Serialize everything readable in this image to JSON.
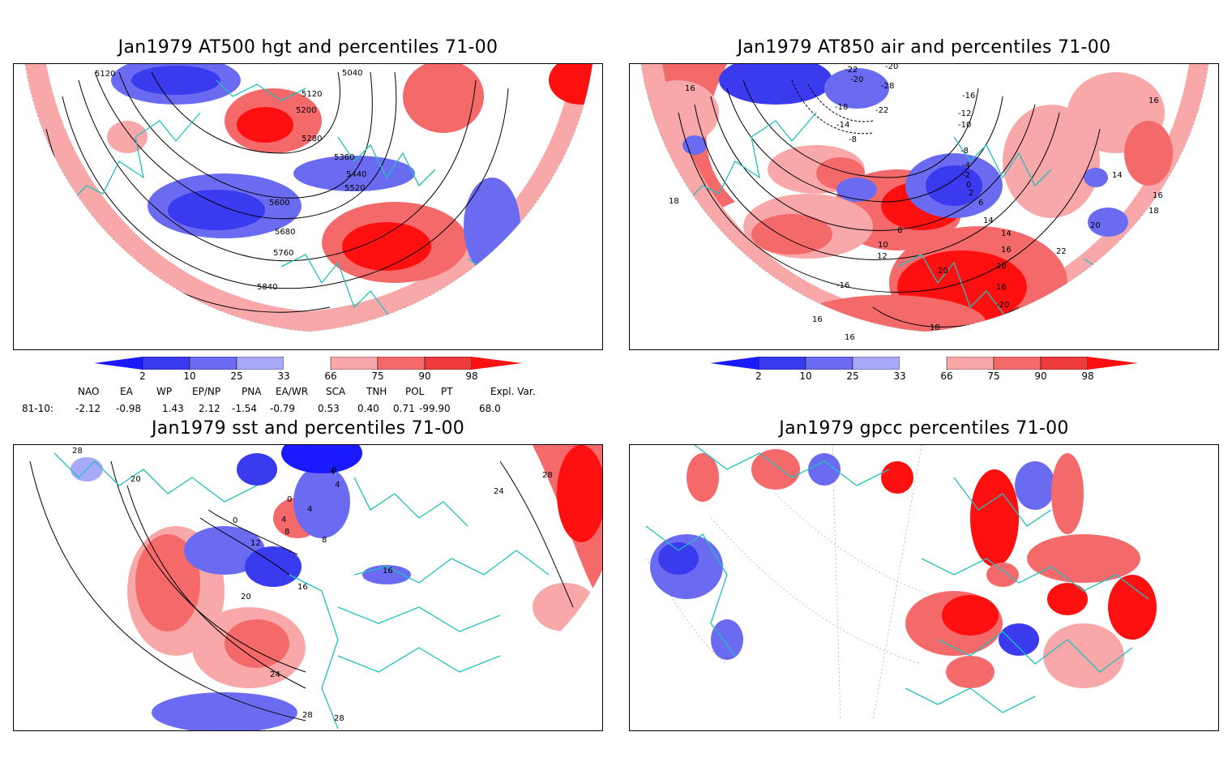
{
  "panels": {
    "hgt": {
      "title": "Jan1979 AT500 hgt and percentiles 71-00",
      "contour_labels": [
        "5120",
        "5040",
        "5120",
        "5200",
        "5280",
        "5360",
        "5440",
        "5520",
        "5600",
        "5680",
        "5760",
        "5840"
      ]
    },
    "air": {
      "title": "Jan1979 AT850 air and percentiles 71-00",
      "contour_labels": [
        "16",
        "-22",
        "-20",
        "-20",
        "-28",
        "-22",
        "-18",
        "-16",
        "-14",
        "-12",
        "-10",
        "-8",
        "-8",
        "-4",
        "-2",
        "0",
        "2",
        "6",
        "8",
        "10",
        "12",
        "14",
        "14",
        "16",
        "16",
        "16",
        "18",
        "18",
        "18",
        "20",
        "20",
        "22",
        "-16",
        "-20",
        "16",
        "16",
        "18",
        "14",
        "16"
      ]
    },
    "sst": {
      "title": "Jan1979 sst and percentiles 71-00",
      "contour_labels": [
        "28",
        "20",
        "0",
        "4",
        "8",
        "12",
        "16",
        "20",
        "24",
        "28",
        "28",
        "0",
        "4",
        "4",
        "8",
        "16",
        "24",
        "28",
        "0",
        "4"
      ]
    },
    "gpcc": {
      "title": "Jan1979 gpcc percentiles 71-00"
    }
  },
  "colorbar": {
    "ticks": [
      "2",
      "10",
      "25",
      "33",
      "66",
      "75",
      "90",
      "98"
    ],
    "colors": {
      "below_2": "#1a1aff",
      "b2_10": "#3a3aee",
      "b10_25": "#6b6bf2",
      "b25_33": "#a9a9fa",
      "b33_66": "#ffffff",
      "b66_75": "#f8a8a8",
      "b75_90": "#f46a6a",
      "b90_98": "#ee3b3b",
      "above_98": "#ff1010"
    }
  },
  "indices": {
    "headers": [
      "NAO",
      "EA",
      "WP",
      "EP/NP",
      "PNA",
      "EA/WR",
      "SCA",
      "TNH",
      "POL",
      "PT",
      "Expl. Var."
    ],
    "row_label": "81-10:",
    "values": [
      "-2.12",
      "-0.98",
      "1.43",
      "2.12",
      "-1.54",
      "-0.79",
      "0.53",
      "0.40",
      "0.71",
      "-99.90",
      "68.0"
    ]
  },
  "map_style": {
    "coast_color": "#20c0c0",
    "contour_color": "#000000"
  }
}
